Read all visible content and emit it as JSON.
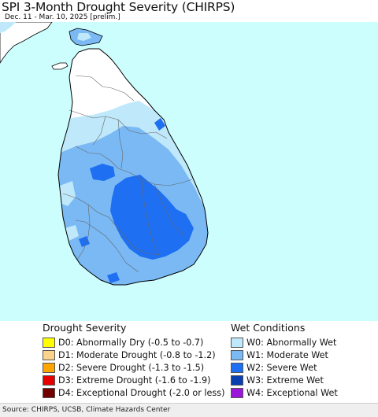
{
  "title": "SPI 3-Month Drought Severity (CHIRPS)",
  "subtitle": "Dec. 11 - Mar. 10, 2025 [prelim.]",
  "colors": {
    "ocean": "#ccfefe",
    "land_normal": "#ffffff",
    "w0": "#bfe8fa",
    "w1": "#7ab9f4",
    "w2": "#1e6ff2",
    "w3": "#0a3fb0",
    "w4": "#9a16d8",
    "d0": "#ffff00",
    "d1": "#fcd38b",
    "d2": "#ffa500",
    "d3": "#e60000",
    "d4": "#720000"
  },
  "legend": {
    "drought": {
      "heading": "Drought Severity",
      "items": [
        {
          "label": "D0: Abnormally Dry (-0.5 to -0.7)",
          "color": "#ffff00"
        },
        {
          "label": "D1: Moderate Drought (-0.8 to -1.2)",
          "color": "#fcd38b"
        },
        {
          "label": "D2: Severe Drought (-1.3 to -1.5)",
          "color": "#ffa500"
        },
        {
          "label": "D3: Extreme Drought (-1.6 to -1.9)",
          "color": "#e60000"
        },
        {
          "label": "D4: Exceptional Drought (-2.0 or less)",
          "color": "#720000"
        }
      ]
    },
    "wet": {
      "heading": "Wet Conditions",
      "items": [
        {
          "label": "W0: Abnormally Wet",
          "color": "#bfe8fa"
        },
        {
          "label": "W1: Moderate Wet",
          "color": "#7ab9f4"
        },
        {
          "label": "W2: Severe Wet",
          "color": "#1e6ff2"
        },
        {
          "label": "W3: Extreme Wet",
          "color": "#0a3fb0"
        },
        {
          "label": "W4: Exceptional Wet",
          "color": "#9a16d8"
        }
      ]
    }
  },
  "source": "Source: CHIRPS, UCSB, Climate Hazards Center"
}
